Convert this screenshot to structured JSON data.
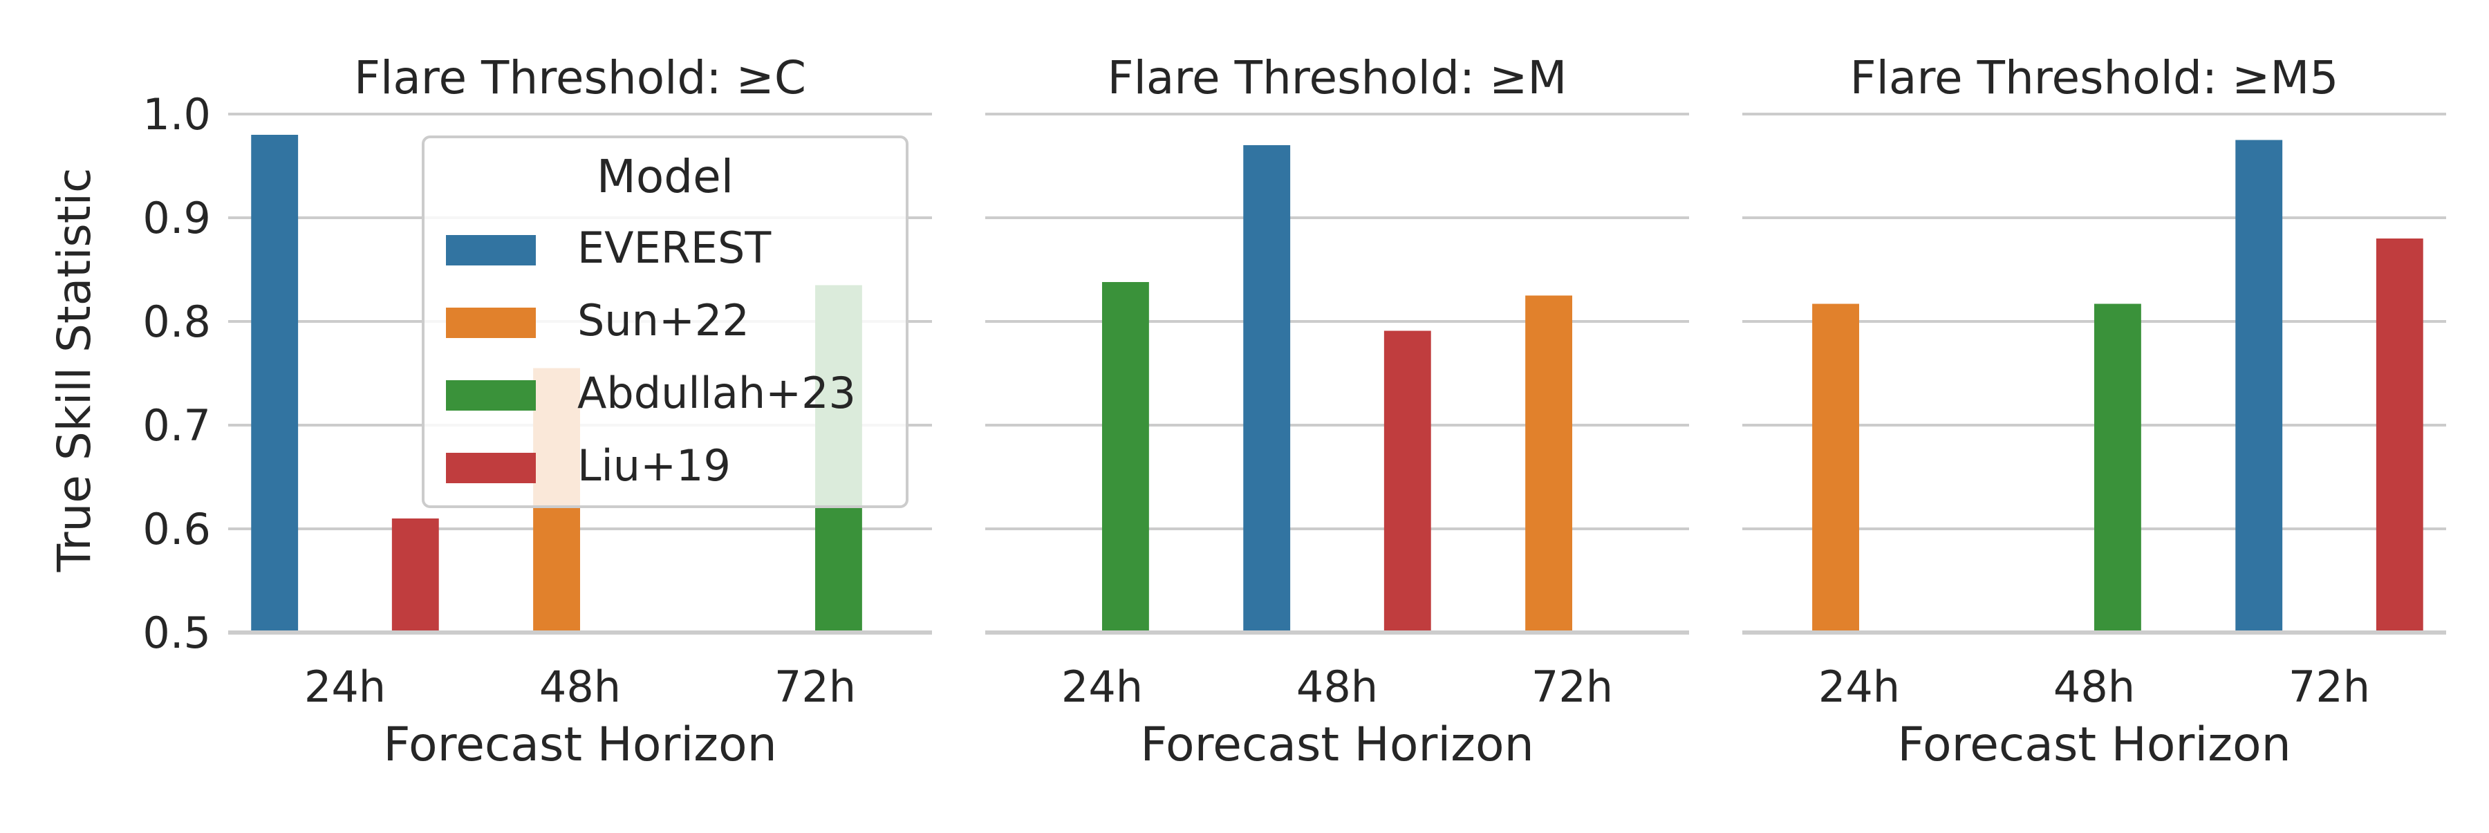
{
  "chart_data": [
    {
      "type": "bar",
      "title": "Flare Threshold: ≥C",
      "xlabel": "Forecast Horizon",
      "ylabel": "True Skill Statistic",
      "categories": [
        "24h",
        "48h",
        "72h"
      ],
      "ylim": [
        0.5,
        1.0
      ],
      "yticks": [
        "0.5",
        "0.6",
        "0.7",
        "0.8",
        "0.9",
        "1.0"
      ],
      "grid": true,
      "legend_position": "upper-center",
      "series": [
        {
          "name": "EVEREST",
          "values": [
            0.98,
            null,
            null
          ]
        },
        {
          "name": "Sun+22",
          "values": [
            null,
            0.755,
            null
          ]
        },
        {
          "name": "Abdullah+23",
          "values": [
            null,
            null,
            0.835
          ]
        },
        {
          "name": "Liu+19",
          "values": [
            0.61,
            null,
            null
          ]
        }
      ]
    },
    {
      "type": "bar",
      "title": "Flare Threshold: ≥M",
      "xlabel": "Forecast Horizon",
      "ylabel": "",
      "categories": [
        "24h",
        "48h",
        "72h"
      ],
      "ylim": [
        0.5,
        1.0
      ],
      "grid": true,
      "series": [
        {
          "name": "EVEREST",
          "values": [
            null,
            0.97,
            null
          ]
        },
        {
          "name": "Sun+22",
          "values": [
            null,
            null,
            0.825
          ]
        },
        {
          "name": "Abdullah+23",
          "values": [
            0.838,
            null,
            null
          ]
        },
        {
          "name": "Liu+19",
          "values": [
            null,
            0.791,
            null
          ]
        }
      ]
    },
    {
      "type": "bar",
      "title": "Flare Threshold: ≥M5",
      "xlabel": "Forecast Horizon",
      "ylabel": "",
      "categories": [
        "24h",
        "48h",
        "72h"
      ],
      "ylim": [
        0.5,
        1.0
      ],
      "grid": true,
      "series": [
        {
          "name": "EVEREST",
          "values": [
            null,
            null,
            0.975
          ]
        },
        {
          "name": "Sun+22",
          "values": [
            0.817,
            null,
            null
          ]
        },
        {
          "name": "Abdullah+23",
          "values": [
            null,
            0.817,
            null
          ]
        },
        {
          "name": "Liu+19",
          "values": [
            null,
            null,
            0.88
          ]
        }
      ]
    }
  ],
  "legend": {
    "title": "Model",
    "entries": [
      "EVEREST",
      "Sun+22",
      "Abdullah+23",
      "Liu+19"
    ]
  },
  "colors": {
    "EVEREST": "#3274a1",
    "Sun+22": "#e1812c",
    "Abdullah+23": "#3a923a",
    "Liu+19": "#c03d3e",
    "grid": "#cccccc",
    "text": "#262626"
  }
}
